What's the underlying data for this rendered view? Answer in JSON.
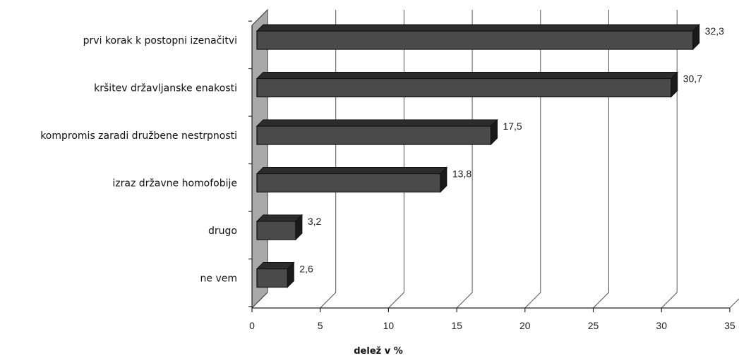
{
  "chart_data": {
    "type": "bar",
    "orientation": "horizontal",
    "style": "3d",
    "categories": [
      "prvi korak k postopni izenačitvi",
      "kršitev državljanske enakosti",
      "kompromis zaradi družbene nestrpnosti",
      "izraz državne homofobije",
      "drugo",
      "ne vem"
    ],
    "values": [
      32.3,
      30.7,
      17.5,
      13.8,
      3.2,
      2.6
    ],
    "value_labels": [
      "32,3",
      "30,7",
      "17,5",
      "13,8",
      "3,2",
      "2,6"
    ],
    "title": "",
    "xlabel": "delež v %",
    "ylabel": "",
    "xlim": [
      0,
      35
    ],
    "xticks": [
      0,
      5,
      10,
      15,
      20,
      25,
      30,
      35
    ],
    "xtick_labels": [
      "0",
      "5",
      "10",
      "15",
      "20",
      "25",
      "30",
      "35"
    ],
    "grid": true,
    "legend": "none",
    "colors": {
      "bar": "#4a4a4a",
      "bar_top": "#2c2c2c",
      "bar_side": "#1a1a1a",
      "wall": "#a9a9a9"
    }
  }
}
